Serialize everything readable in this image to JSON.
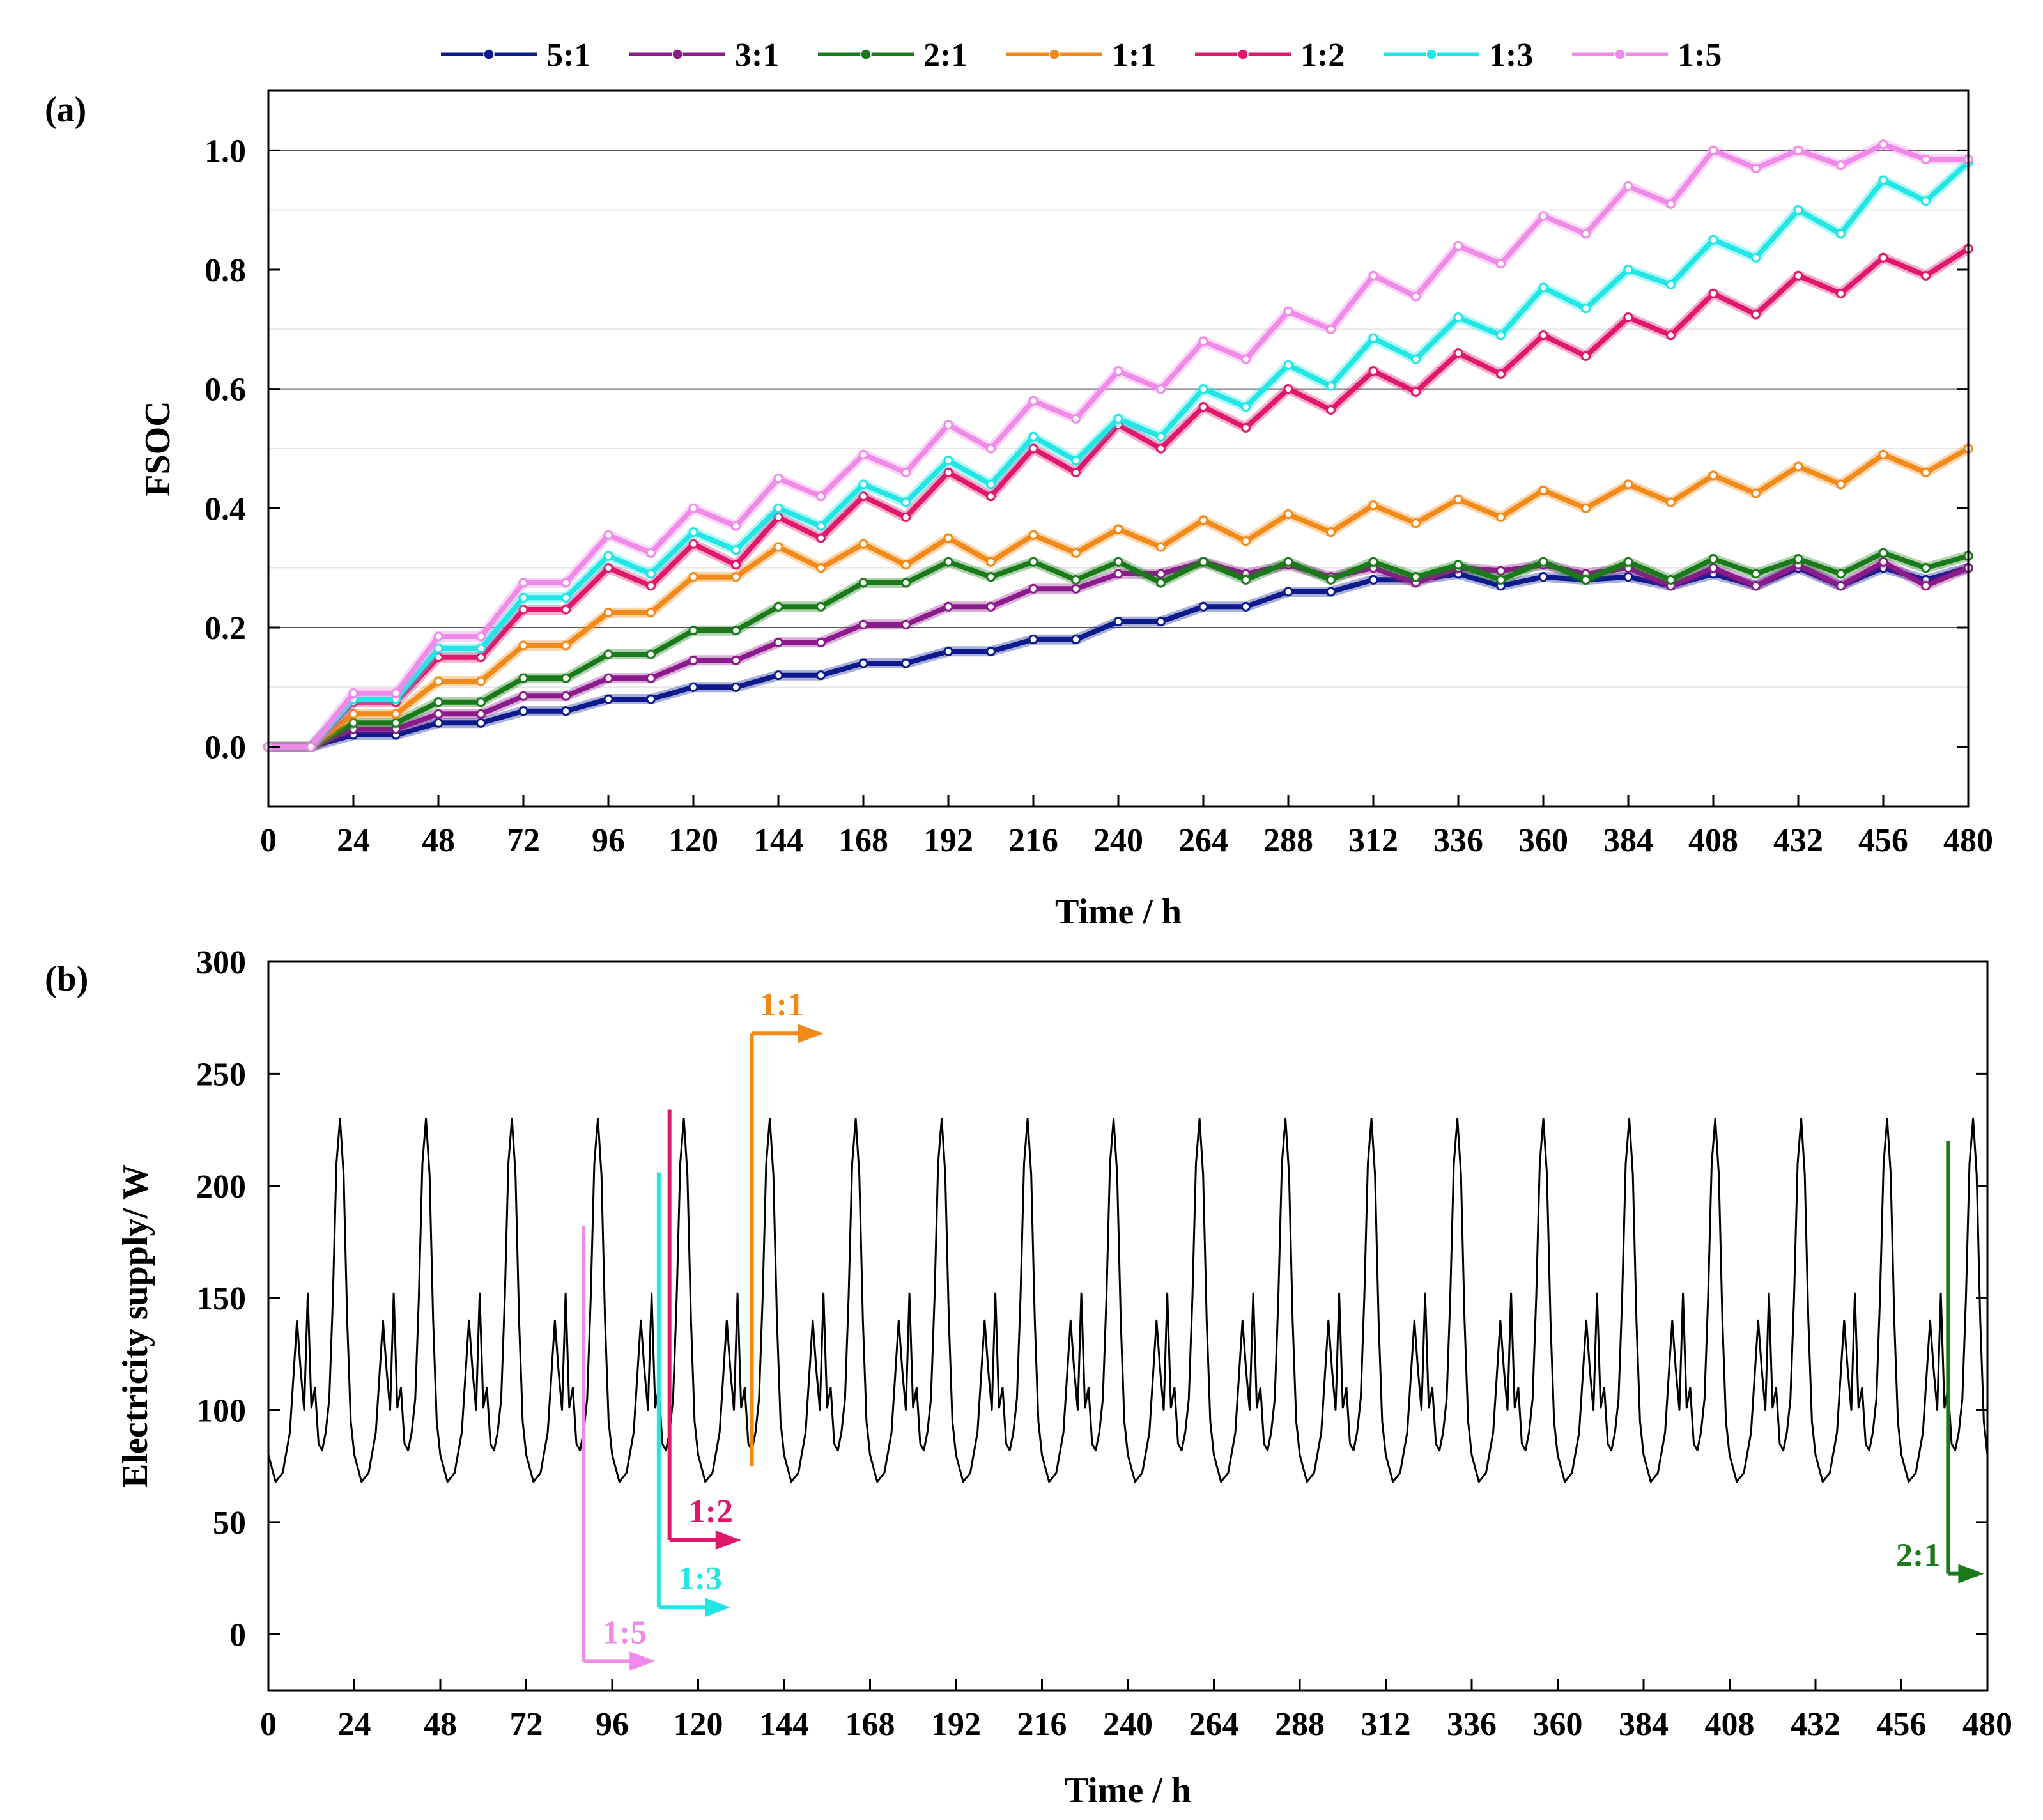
{
  "figure": {
    "legend": [
      {
        "label": "5:1",
        "color": "#0c1a8c"
      },
      {
        "label": "3:1",
        "color": "#8b1a8b"
      },
      {
        "label": "2:1",
        "color": "#1a7a1a"
      },
      {
        "label": "1:1",
        "color": "#f28a1a"
      },
      {
        "label": "1:2",
        "color": "#e0186c"
      },
      {
        "label": "1:3",
        "color": "#22e6e6"
      },
      {
        "label": "1:5",
        "color": "#f08ae8"
      }
    ]
  },
  "chart_data": [
    {
      "panel_label": "(a)",
      "type": "line",
      "xlabel": "Time / h",
      "ylabel": "FSOC",
      "xlim": [
        0,
        480
      ],
      "ylim": [
        -0.1,
        1.1
      ],
      "xticks": [
        0,
        24,
        48,
        72,
        96,
        120,
        144,
        168,
        192,
        216,
        240,
        264,
        288,
        312,
        336,
        360,
        384,
        408,
        432,
        456,
        480
      ],
      "yticks": [
        0.0,
        0.2,
        0.4,
        0.6,
        0.8,
        1.0
      ],
      "grid_y": [
        0.2,
        0.6,
        1.0
      ],
      "minor_grid_y": [
        0.1,
        0.3,
        0.5,
        0.7,
        0.9
      ],
      "x": [
        0,
        12,
        24,
        36,
        48,
        60,
        72,
        84,
        96,
        108,
        120,
        132,
        144,
        156,
        168,
        180,
        192,
        204,
        216,
        228,
        240,
        252,
        264,
        276,
        288,
        300,
        312,
        324,
        336,
        348,
        360,
        372,
        384,
        396,
        408,
        420,
        432,
        444,
        456,
        468,
        480
      ],
      "series": [
        {
          "name": "5:1",
          "color": "#0c1a8c",
          "values": [
            0.0,
            0.0,
            0.02,
            0.02,
            0.04,
            0.04,
            0.06,
            0.06,
            0.08,
            0.08,
            0.1,
            0.1,
            0.12,
            0.12,
            0.14,
            0.14,
            0.16,
            0.16,
            0.18,
            0.18,
            0.21,
            0.21,
            0.235,
            0.235,
            0.26,
            0.26,
            0.28,
            0.28,
            0.29,
            0.27,
            0.285,
            0.28,
            0.285,
            0.27,
            0.29,
            0.27,
            0.3,
            0.27,
            0.3,
            0.28,
            0.3
          ]
        },
        {
          "name": "3:1",
          "color": "#8b1a8b",
          "values": [
            0.0,
            0.0,
            0.03,
            0.03,
            0.055,
            0.055,
            0.085,
            0.085,
            0.115,
            0.115,
            0.145,
            0.145,
            0.175,
            0.175,
            0.205,
            0.205,
            0.235,
            0.235,
            0.265,
            0.265,
            0.29,
            0.29,
            0.31,
            0.29,
            0.305,
            0.285,
            0.3,
            0.275,
            0.3,
            0.295,
            0.305,
            0.29,
            0.3,
            0.27,
            0.3,
            0.27,
            0.305,
            0.27,
            0.31,
            0.27,
            0.3
          ]
        },
        {
          "name": "2:1",
          "color": "#1a7a1a",
          "values": [
            0.0,
            0.0,
            0.04,
            0.04,
            0.075,
            0.075,
            0.115,
            0.115,
            0.155,
            0.155,
            0.195,
            0.195,
            0.235,
            0.235,
            0.275,
            0.275,
            0.31,
            0.285,
            0.31,
            0.28,
            0.31,
            0.275,
            0.31,
            0.28,
            0.31,
            0.28,
            0.31,
            0.285,
            0.305,
            0.28,
            0.31,
            0.28,
            0.31,
            0.28,
            0.315,
            0.29,
            0.315,
            0.29,
            0.325,
            0.3,
            0.32
          ]
        },
        {
          "name": "1:1",
          "color": "#f28a1a",
          "values": [
            0.0,
            0.0,
            0.055,
            0.055,
            0.11,
            0.11,
            0.17,
            0.17,
            0.225,
            0.225,
            0.285,
            0.285,
            0.335,
            0.3,
            0.34,
            0.305,
            0.35,
            0.31,
            0.355,
            0.325,
            0.365,
            0.335,
            0.38,
            0.345,
            0.39,
            0.36,
            0.405,
            0.375,
            0.415,
            0.385,
            0.43,
            0.4,
            0.44,
            0.41,
            0.455,
            0.425,
            0.47,
            0.44,
            0.49,
            0.46,
            0.5
          ]
        },
        {
          "name": "1:2",
          "color": "#e0186c",
          "values": [
            0.0,
            0.0,
            0.075,
            0.075,
            0.15,
            0.15,
            0.23,
            0.23,
            0.3,
            0.27,
            0.34,
            0.305,
            0.385,
            0.35,
            0.42,
            0.385,
            0.46,
            0.42,
            0.5,
            0.46,
            0.54,
            0.5,
            0.57,
            0.535,
            0.6,
            0.565,
            0.63,
            0.595,
            0.66,
            0.625,
            0.69,
            0.655,
            0.72,
            0.69,
            0.76,
            0.725,
            0.79,
            0.76,
            0.82,
            0.79,
            0.835
          ]
        },
        {
          "name": "1:3",
          "color": "#22e6e6",
          "values": [
            0.0,
            0.0,
            0.08,
            0.08,
            0.165,
            0.165,
            0.25,
            0.25,
            0.32,
            0.29,
            0.36,
            0.33,
            0.4,
            0.37,
            0.44,
            0.41,
            0.48,
            0.44,
            0.52,
            0.48,
            0.55,
            0.52,
            0.6,
            0.57,
            0.64,
            0.605,
            0.685,
            0.65,
            0.72,
            0.69,
            0.77,
            0.735,
            0.8,
            0.775,
            0.85,
            0.82,
            0.9,
            0.86,
            0.95,
            0.915,
            0.98
          ]
        },
        {
          "name": "1:5",
          "color": "#f08ae8",
          "values": [
            0.0,
            0.0,
            0.09,
            0.09,
            0.185,
            0.185,
            0.275,
            0.275,
            0.355,
            0.325,
            0.4,
            0.37,
            0.45,
            0.42,
            0.49,
            0.46,
            0.54,
            0.5,
            0.58,
            0.55,
            0.63,
            0.6,
            0.68,
            0.65,
            0.73,
            0.7,
            0.79,
            0.755,
            0.84,
            0.81,
            0.89,
            0.86,
            0.94,
            0.91,
            1.0,
            0.97,
            1.0,
            0.975,
            1.01,
            0.985,
            0.985
          ]
        }
      ]
    },
    {
      "panel_label": "(b)",
      "type": "line",
      "xlabel": "Time / h",
      "ylabel": "Electricity supply/ W",
      "xlim": [
        0,
        480
      ],
      "ylim": [
        -25,
        300
      ],
      "xticks": [
        0,
        24,
        48,
        72,
        96,
        120,
        144,
        168,
        192,
        216,
        240,
        264,
        288,
        312,
        336,
        360,
        384,
        408,
        432,
        456,
        480
      ],
      "yticks": [
        0,
        50,
        100,
        150,
        200,
        250,
        300
      ],
      "series": [
        {
          "name": "Electricity supply",
          "color": "#000000",
          "period_h": 24,
          "profile_hours": [
            0,
            2,
            4,
            6,
            8,
            9,
            10,
            11,
            12,
            13,
            14,
            15,
            16,
            17,
            18,
            19,
            20,
            21,
            22,
            23,
            24
          ],
          "profile_values": [
            80,
            68,
            72,
            90,
            140,
            118,
            100,
            152,
            101,
            110,
            85,
            82,
            90,
            105,
            150,
            210,
            230,
            205,
            140,
            95,
            80
          ]
        }
      ],
      "annotations": [
        {
          "label": "1:5",
          "color": "#f08ae8",
          "x": 88,
          "y_top": 182,
          "y_bottom": -12,
          "arrow_to_x": 108
        },
        {
          "label": "1:3",
          "color": "#22e6e6",
          "x": 109,
          "y_top": 206,
          "y_bottom": 12,
          "arrow_to_x": 129
        },
        {
          "label": "1:2",
          "color": "#e0186c",
          "x": 112,
          "y_top": 234,
          "y_bottom": 42,
          "arrow_to_x": 132
        },
        {
          "label": "1:1",
          "color": "#f28a1a",
          "x": 135,
          "y_top": 75,
          "y_bottom": 268,
          "arrow_to_x": 155
        },
        {
          "label": "2:1",
          "color": "#1a7a1a",
          "x": 469,
          "y_top": 220,
          "y_bottom": 27,
          "arrow_to_x": 479
        }
      ]
    }
  ]
}
